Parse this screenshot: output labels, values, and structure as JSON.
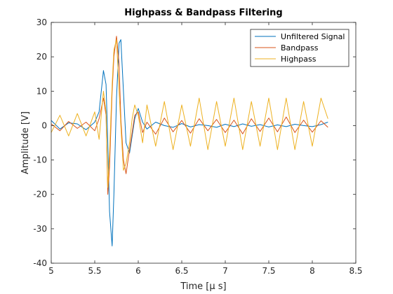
{
  "chart_data": {
    "type": "line",
    "title": "Highpass & Bandpass Filtering",
    "xlabel": "Time [μ s]",
    "ylabel": "Amplitude [V]",
    "xlim": [
      5,
      8.5
    ],
    "ylim": [
      -40,
      30
    ],
    "xticks": [
      5,
      5.5,
      6,
      6.5,
      7,
      7.5,
      8,
      8.5
    ],
    "xtick_labels": [
      "5",
      "5.5",
      "6",
      "6.5",
      "7",
      "7.5",
      "8",
      "8.5"
    ],
    "yticks": [
      -40,
      -30,
      -20,
      -10,
      0,
      10,
      20,
      30
    ],
    "ytick_labels": [
      "-40",
      "-30",
      "-20",
      "-10",
      "0",
      "10",
      "20",
      "30"
    ],
    "grid": false,
    "legend_position": "top-right",
    "series": [
      {
        "name": "Unfiltered Signal",
        "color": "#0072BD",
        "x": [
          5.0,
          5.1,
          5.2,
          5.3,
          5.4,
          5.5,
          5.55,
          5.6,
          5.63,
          5.65,
          5.67,
          5.7,
          5.72,
          5.75,
          5.78,
          5.8,
          5.83,
          5.86,
          5.9,
          5.93,
          5.96,
          6.0,
          6.05,
          6.1,
          6.2,
          6.3,
          6.4,
          6.5,
          6.6,
          6.7,
          6.8,
          6.9,
          7.0,
          7.1,
          7.2,
          7.3,
          7.4,
          7.5,
          7.6,
          7.7,
          7.8,
          7.9,
          8.0,
          8.1,
          8.18
        ],
        "y": [
          1.5,
          -1,
          0.8,
          0.5,
          -1.2,
          1.0,
          4,
          16,
          12,
          -5,
          -25,
          -35,
          -20,
          8,
          24,
          25,
          10,
          -5,
          -8,
          -3,
          2,
          5,
          1,
          -1,
          1,
          0,
          -0.5,
          0.6,
          -0.4,
          0.3,
          0,
          -0.5,
          0.4,
          -0.3,
          0.5,
          -0.2,
          0.3,
          -0.4,
          0.2,
          -0.3,
          0.4,
          0,
          -0.3,
          0.3,
          1.0
        ]
      },
      {
        "name": "Bandpass",
        "color": "#D95319",
        "x": [
          5.0,
          5.1,
          5.2,
          5.3,
          5.4,
          5.5,
          5.55,
          5.6,
          5.63,
          5.65,
          5.67,
          5.7,
          5.72,
          5.75,
          5.78,
          5.8,
          5.83,
          5.86,
          5.9,
          5.93,
          5.96,
          6.0,
          6.05,
          6.1,
          6.2,
          6.3,
          6.4,
          6.5,
          6.6,
          6.7,
          6.8,
          6.9,
          7.0,
          7.1,
          7.2,
          7.3,
          7.4,
          7.5,
          7.6,
          7.7,
          7.8,
          7.9,
          8.0,
          8.1,
          8.18
        ],
        "y": [
          0.5,
          -1.5,
          1.2,
          -0.8,
          1.0,
          -1.5,
          2,
          8,
          3,
          -20,
          -12,
          10,
          20,
          26,
          18,
          2,
          -10,
          -14,
          -7,
          -2,
          3,
          4,
          -2,
          1,
          -2.5,
          2.2,
          -1.8,
          1.5,
          -2.2,
          2.0,
          -1.5,
          1.8,
          -2.0,
          1.6,
          -2.4,
          2.0,
          -1.7,
          2.2,
          -1.8,
          2.5,
          -2.0,
          1.6,
          -1.9,
          1.4,
          -0.5
        ]
      },
      {
        "name": "Highpass",
        "color": "#EDB120",
        "x": [
          5.0,
          5.1,
          5.2,
          5.3,
          5.4,
          5.5,
          5.55,
          5.6,
          5.63,
          5.65,
          5.67,
          5.7,
          5.72,
          5.75,
          5.78,
          5.8,
          5.83,
          5.86,
          5.9,
          5.93,
          5.96,
          6.0,
          6.05,
          6.1,
          6.2,
          6.3,
          6.4,
          6.5,
          6.6,
          6.7,
          6.8,
          6.9,
          7.0,
          7.1,
          7.2,
          7.3,
          7.4,
          7.5,
          7.6,
          7.7,
          7.8,
          7.9,
          8.0,
          8.1,
          8.18
        ],
        "y": [
          -2,
          3,
          -3,
          3.5,
          -3,
          4,
          -4,
          10,
          4,
          -18,
          -8,
          12,
          22,
          25,
          10,
          0,
          -13,
          -11,
          -5,
          2,
          6,
          3,
          -5,
          6,
          -6,
          7,
          -7,
          6,
          -6,
          8,
          -7,
          7,
          -6,
          8,
          -7,
          7,
          -6,
          8,
          -7,
          8,
          -7,
          7,
          -6,
          8,
          2
        ]
      }
    ]
  }
}
